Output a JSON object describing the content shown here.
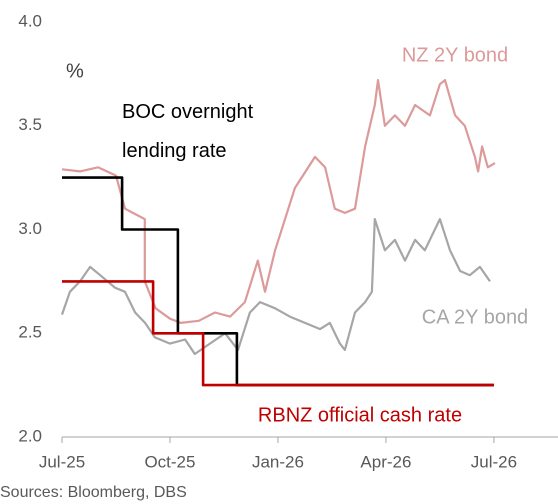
{
  "chart_data": {
    "type": "line",
    "annotations": {
      "unit": "%",
      "sources": "Sources: Bloomberg, DBS"
    },
    "ylim": [
      2.0,
      4.0
    ],
    "yticks": [
      {
        "value": 2.0,
        "label": "2.0"
      },
      {
        "value": 2.5,
        "label": "2.5"
      },
      {
        "value": 3.0,
        "label": "3.0"
      },
      {
        "value": 3.5,
        "label": "3.5"
      },
      {
        "value": 4.0,
        "label": "4.0"
      }
    ],
    "xlim": [
      0,
      13.78
    ],
    "xticks": [
      {
        "value": 0,
        "label": "Jul-25"
      },
      {
        "value": 3,
        "label": "Oct-25"
      },
      {
        "value": 6,
        "label": "Jan-26"
      },
      {
        "value": 9,
        "label": "Apr-26"
      },
      {
        "value": 12,
        "label": "Jul-26"
      }
    ],
    "series": [
      {
        "name": "NZ 2Y bond",
        "color": "#dd9a9a",
        "x": [
          0,
          0.5,
          1.0,
          1.5,
          1.75,
          2.3,
          2.3,
          2.6,
          3.0,
          3.3,
          3.8,
          4.25,
          4.67,
          5.08,
          5.44,
          5.64,
          5.92,
          6.47,
          7.03,
          7.31,
          7.58,
          7.86,
          8.14,
          8.42,
          8.69,
          8.78,
          8.97,
          9.25,
          9.53,
          9.81,
          10.22,
          10.5,
          10.64,
          10.92,
          11.19,
          11.47,
          11.56,
          11.67,
          11.83,
          12.03
        ],
        "values": [
          3.29,
          3.28,
          3.3,
          3.26,
          3.1,
          3.05,
          2.75,
          2.62,
          2.57,
          2.55,
          2.56,
          2.6,
          2.58,
          2.65,
          2.85,
          2.7,
          2.9,
          3.2,
          3.35,
          3.3,
          3.1,
          3.08,
          3.1,
          3.4,
          3.6,
          3.72,
          3.5,
          3.55,
          3.5,
          3.6,
          3.55,
          3.7,
          3.72,
          3.55,
          3.5,
          3.35,
          3.28,
          3.4,
          3.3,
          3.32
        ]
      },
      {
        "name": "CA 2Y bond",
        "color": "#a6a6a6",
        "x": [
          0,
          0.22,
          0.5,
          0.78,
          1.06,
          1.47,
          1.75,
          2.03,
          2.31,
          2.58,
          3.0,
          3.42,
          3.69,
          4.11,
          4.53,
          4.89,
          5.22,
          5.5,
          5.92,
          6.33,
          6.75,
          7.17,
          7.44,
          7.72,
          7.86,
          8.14,
          8.42,
          8.61,
          8.69,
          8.97,
          9.25,
          9.53,
          9.81,
          10.08,
          10.5,
          10.78,
          11.06,
          11.33,
          11.61,
          11.89
        ],
        "values": [
          2.59,
          2.7,
          2.75,
          2.82,
          2.78,
          2.72,
          2.7,
          2.6,
          2.55,
          2.48,
          2.45,
          2.47,
          2.4,
          2.45,
          2.5,
          2.42,
          2.6,
          2.65,
          2.62,
          2.58,
          2.55,
          2.52,
          2.55,
          2.45,
          2.42,
          2.6,
          2.65,
          2.7,
          3.05,
          2.9,
          2.95,
          2.85,
          2.95,
          2.9,
          3.05,
          2.9,
          2.8,
          2.78,
          2.82,
          2.75
        ]
      },
      {
        "name": "BOC overnight lending rate",
        "color": "#000000",
        "x": [
          0,
          1.67,
          1.67,
          3.22,
          3.22,
          4.86,
          4.86,
          12
        ],
        "values": [
          3.25,
          3.25,
          3.0,
          3.0,
          2.5,
          2.5,
          2.25,
          2.25
        ]
      },
      {
        "name": "RBNZ official cash rate",
        "color": "#c00000",
        "x": [
          0,
          2.53,
          2.53,
          3.92,
          3.92,
          12
        ],
        "values": [
          2.75,
          2.75,
          2.5,
          2.5,
          2.25,
          2.25
        ]
      }
    ]
  }
}
